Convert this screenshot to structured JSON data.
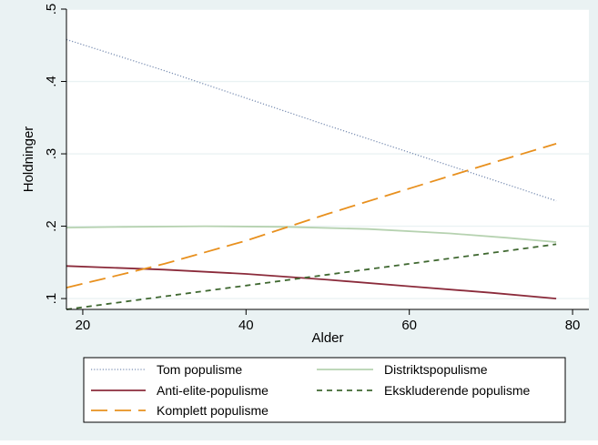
{
  "chart_data": {
    "type": "line",
    "title": "",
    "xlabel": "Alder",
    "ylabel": "Holdninger",
    "xlim": [
      18,
      82
    ],
    "ylim": [
      0.085,
      0.5
    ],
    "xticks": [
      20,
      40,
      60,
      80
    ],
    "xtick_labels": [
      "20",
      "40",
      "60",
      "80"
    ],
    "yticks": [
      0.1,
      0.2,
      0.3,
      0.4,
      0.5
    ],
    "ytick_labels": [
      ".1",
      ".2",
      ".3",
      ".4",
      ".5"
    ],
    "grid": "horizontal",
    "legend_position": "bottom",
    "series": [
      {
        "name": "Tom populisme",
        "color": "#7b8fb3",
        "dash": "dotted",
        "x": [
          18,
          30,
          40,
          50,
          60,
          70,
          78
        ],
        "y": [
          0.458,
          0.415,
          0.377,
          0.339,
          0.302,
          0.265,
          0.235
        ]
      },
      {
        "name": "Distriktspopulisme",
        "color": "#b6d2b0",
        "dash": "solid",
        "x": [
          18,
          25,
          35,
          45,
          55,
          65,
          72,
          78
        ],
        "y": [
          0.198,
          0.199,
          0.2,
          0.199,
          0.196,
          0.19,
          0.184,
          0.178
        ]
      },
      {
        "name": "Anti-elite-populisme",
        "color": "#8b2b3b",
        "dash": "solid",
        "x": [
          18,
          30,
          40,
          50,
          60,
          70,
          78
        ],
        "y": [
          0.145,
          0.14,
          0.134,
          0.126,
          0.117,
          0.108,
          0.1
        ]
      },
      {
        "name": "Ekskluderende populisme",
        "color": "#3f6830",
        "dash": "dashed",
        "x": [
          18,
          30,
          40,
          50,
          60,
          70,
          78
        ],
        "y": [
          0.085,
          0.103,
          0.118,
          0.133,
          0.148,
          0.163,
          0.175
        ]
      },
      {
        "name": "Komplett populisme",
        "color": "#e8901e",
        "dash": "longdash",
        "x": [
          18,
          25,
          30,
          40,
          50,
          60,
          70,
          78
        ],
        "y": [
          0.115,
          0.134,
          0.148,
          0.18,
          0.217,
          0.252,
          0.287,
          0.314
        ]
      }
    ]
  },
  "legend": {
    "items": [
      {
        "label": "Tom populisme",
        "series": 0
      },
      {
        "label": "Distriktspopulisme",
        "series": 1
      },
      {
        "label": "Anti-elite-populisme",
        "series": 2
      },
      {
        "label": "Ekskluderende populisme",
        "series": 3
      },
      {
        "label": "Komplett populisme",
        "series": 4
      }
    ]
  },
  "colors": {
    "outer_background": "#eaf2f3",
    "plot_background": "#ffffff",
    "gridline": "#eaf2f3",
    "axis": "#000000"
  }
}
